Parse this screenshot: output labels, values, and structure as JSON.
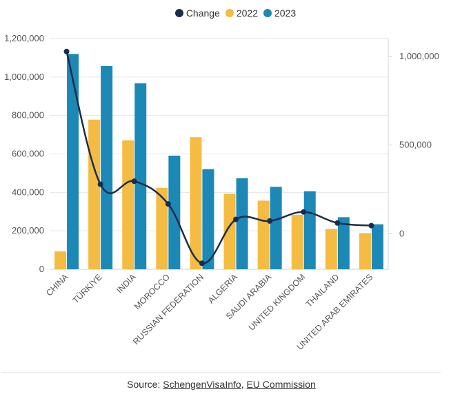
{
  "chart_data": {
    "type": "bar",
    "categories": [
      "CHINA",
      "TÜRKIYE",
      "INDIA",
      "MOROCCO",
      "RUSSIAN FEDERATION",
      "ALGERIA",
      "SAUDI ARABIA",
      "UNITED KINGDOM",
      "THAILAND",
      "UNITED ARAB EMIRATES"
    ],
    "series": [
      {
        "name": "2022",
        "type": "bar",
        "axis": "left",
        "color": "#f4bc42",
        "values": [
          93000,
          778000,
          671000,
          423000,
          687000,
          393000,
          357000,
          283000,
          210000,
          188000
        ]
      },
      {
        "name": "2023",
        "type": "bar",
        "axis": "left",
        "color": "#1c88b5",
        "values": [
          1120000,
          1057000,
          967000,
          591000,
          521000,
          474000,
          429000,
          406000,
          271000,
          234000
        ]
      },
      {
        "name": "Change",
        "type": "line",
        "axis": "right",
        "color": "#1b2b4b",
        "values": [
          1027000,
          279000,
          296000,
          168000,
          -166000,
          81000,
          72000,
          123000,
          61000,
          46000
        ]
      }
    ],
    "legend_order": [
      "Change",
      "2022",
      "2023"
    ],
    "legend_position": "top-center",
    "y_left": {
      "ylim": [
        0,
        1200000
      ],
      "ticks": [
        "0",
        "200,000",
        "400,000",
        "600,000",
        "800,000",
        "1,000,000",
        "1,200,000"
      ]
    },
    "y_right": {
      "ylim": [
        -200000,
        1100000
      ],
      "ticks": [
        "0",
        "500,000",
        "1,000,000"
      ],
      "tick_values": [
        0,
        500000,
        1000000
      ]
    },
    "grid": true
  },
  "source": {
    "prefix": "Source: ",
    "link1": "SchengenVisaInfo",
    "sep": ", ",
    "link2": "EU Commission"
  }
}
